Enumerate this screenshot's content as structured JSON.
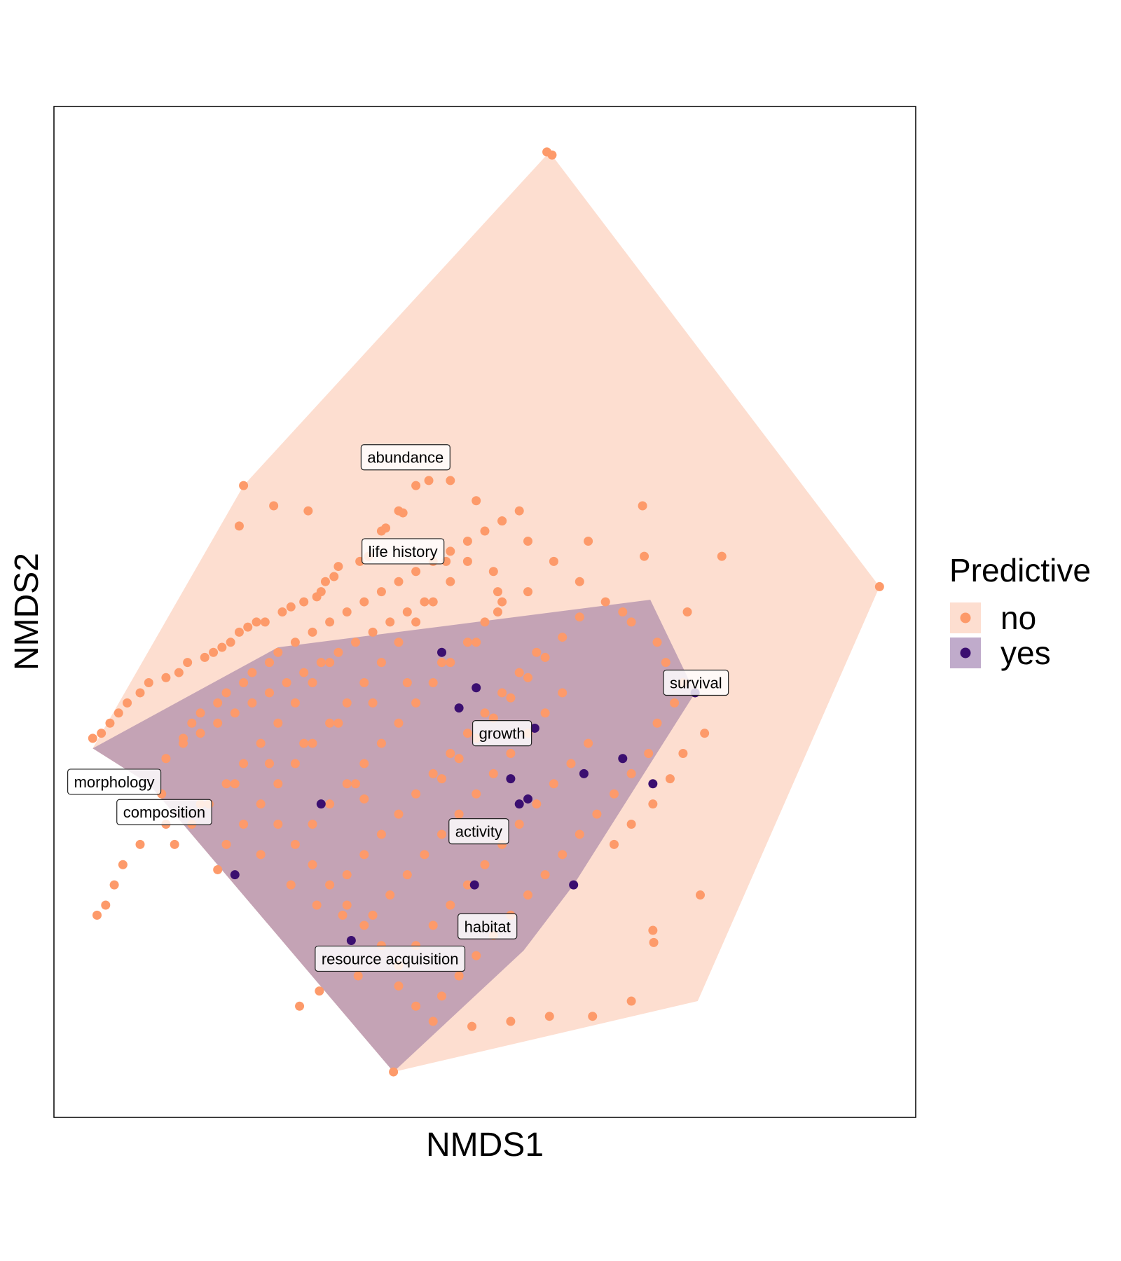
{
  "chart_data": {
    "type": "scatter",
    "title": "",
    "xlabel": "NMDS1",
    "ylabel": "NMDS2",
    "xlim": [
      0,
      100
    ],
    "ylim": [
      0,
      100
    ],
    "axis_ticks": false,
    "grid": false,
    "legend": {
      "title": "Predictive",
      "position": "right",
      "entries": [
        {
          "label": "no",
          "point_color": "#FD9A6A",
          "fill_color": "#FDDED0"
        },
        {
          "label": "yes",
          "point_color": "#3B0F70",
          "fill_color": "#C0ABCB"
        }
      ]
    },
    "hulls": [
      {
        "group": "no",
        "fill": "#FDDED0",
        "vertices": [
          [
            4.5,
            36.5
          ],
          [
            22,
            62.5
          ],
          [
            57.5,
            95.5
          ],
          [
            95.8,
            52.5
          ],
          [
            74.7,
            11.5
          ],
          [
            39.4,
            4.5
          ],
          [
            11,
            33
          ]
        ]
      },
      {
        "group": "yes",
        "fill": "#C4A3B5",
        "vertices": [
          [
            4.5,
            36.5
          ],
          [
            26,
            46.5
          ],
          [
            69.2,
            51.2
          ],
          [
            74.4,
            42
          ],
          [
            60.3,
            23
          ],
          [
            54.5,
            16.5
          ],
          [
            39.4,
            4.5
          ],
          [
            11,
            33
          ]
        ]
      }
    ],
    "series": [
      {
        "name": "no",
        "color": "#FD9A6A",
        "points": [
          [
            57.2,
            95.5
          ],
          [
            57.8,
            95.2
          ],
          [
            95.8,
            52.5
          ],
          [
            22,
            62.5
          ],
          [
            21.5,
            58.5
          ],
          [
            25.5,
            60.5
          ],
          [
            29.5,
            60
          ],
          [
            42,
            62.5
          ],
          [
            40,
            60
          ],
          [
            40.5,
            59.8
          ],
          [
            38.5,
            58.3
          ],
          [
            38,
            58
          ],
          [
            36.5,
            55.5
          ],
          [
            35.5,
            55
          ],
          [
            33,
            54.5
          ],
          [
            32.5,
            53.5
          ],
          [
            31.5,
            53
          ],
          [
            31,
            52
          ],
          [
            30.5,
            51.5
          ],
          [
            29,
            51
          ],
          [
            27.5,
            50.5
          ],
          [
            26.5,
            50
          ],
          [
            24.5,
            49
          ],
          [
            23.5,
            49
          ],
          [
            22.5,
            48.5
          ],
          [
            21.5,
            48
          ],
          [
            20.5,
            47
          ],
          [
            19.5,
            46.5
          ],
          [
            18.5,
            46
          ],
          [
            17.5,
            45.5
          ],
          [
            15.5,
            45
          ],
          [
            14.5,
            44
          ],
          [
            13,
            43.5
          ],
          [
            11,
            43
          ],
          [
            10,
            42
          ],
          [
            8.5,
            41
          ],
          [
            7.5,
            40
          ],
          [
            6.5,
            39
          ],
          [
            5.5,
            38
          ],
          [
            4.5,
            37.5
          ],
          [
            43.5,
            63
          ],
          [
            45.5,
            55
          ],
          [
            51,
            54
          ],
          [
            51.5,
            52
          ],
          [
            68.3,
            60.5
          ],
          [
            68.5,
            55.5
          ],
          [
            66,
            50
          ],
          [
            77.5,
            55.5
          ],
          [
            73.5,
            50
          ],
          [
            62,
            57
          ],
          [
            55,
            52
          ],
          [
            51.5,
            50
          ],
          [
            49,
            47
          ],
          [
            45,
            45
          ],
          [
            41,
            43
          ],
          [
            37,
            41
          ],
          [
            33,
            39
          ],
          [
            29,
            37
          ],
          [
            25,
            35
          ],
          [
            21,
            33
          ],
          [
            17,
            31
          ],
          [
            13,
            29
          ],
          [
            10,
            27
          ],
          [
            8,
            25
          ],
          [
            7,
            23
          ],
          [
            6,
            21
          ],
          [
            5,
            20
          ],
          [
            12.5,
            32
          ],
          [
            13,
            35.5
          ],
          [
            15,
            37.5
          ],
          [
            16,
            39
          ],
          [
            17,
            40
          ],
          [
            19,
            41
          ],
          [
            20,
            42
          ],
          [
            22,
            43
          ],
          [
            23,
            44
          ],
          [
            25,
            45
          ],
          [
            26,
            46
          ],
          [
            28,
            47
          ],
          [
            30,
            48
          ],
          [
            32,
            49
          ],
          [
            34,
            50
          ],
          [
            36,
            51
          ],
          [
            38,
            52
          ],
          [
            40,
            53
          ],
          [
            42,
            54
          ],
          [
            44,
            55
          ],
          [
            46,
            56
          ],
          [
            48,
            57
          ],
          [
            50,
            58
          ],
          [
            52,
            59
          ],
          [
            54,
            60
          ],
          [
            43,
            51
          ],
          [
            41,
            50
          ],
          [
            39,
            49
          ],
          [
            37,
            48
          ],
          [
            35,
            47
          ],
          [
            33,
            46
          ],
          [
            31,
            45
          ],
          [
            29,
            44
          ],
          [
            27,
            43
          ],
          [
            25,
            42
          ],
          [
            23,
            41
          ],
          [
            21,
            40
          ],
          [
            19,
            39
          ],
          [
            17,
            38
          ],
          [
            15,
            37
          ],
          [
            26,
            33
          ],
          [
            28,
            35
          ],
          [
            30,
            37
          ],
          [
            32,
            39
          ],
          [
            34,
            41
          ],
          [
            36,
            43
          ],
          [
            38,
            45
          ],
          [
            40,
            47
          ],
          [
            42,
            49
          ],
          [
            44,
            51
          ],
          [
            46,
            53
          ],
          [
            48,
            55
          ],
          [
            30,
            29
          ],
          [
            32,
            31
          ],
          [
            34,
            33
          ],
          [
            36,
            35
          ],
          [
            38,
            37
          ],
          [
            40,
            39
          ],
          [
            42,
            41
          ],
          [
            44,
            43
          ],
          [
            46,
            45
          ],
          [
            48,
            47
          ],
          [
            50,
            49
          ],
          [
            52,
            51
          ],
          [
            34,
            24
          ],
          [
            36,
            26
          ],
          [
            38,
            28
          ],
          [
            40,
            30
          ],
          [
            42,
            32
          ],
          [
            44,
            34
          ],
          [
            46,
            36
          ],
          [
            48,
            38
          ],
          [
            50,
            40
          ],
          [
            52,
            42
          ],
          [
            54,
            44
          ],
          [
            56,
            46
          ],
          [
            37,
            20
          ],
          [
            39,
            22
          ],
          [
            41,
            24
          ],
          [
            43,
            26
          ],
          [
            45,
            28
          ],
          [
            47,
            30
          ],
          [
            49,
            32
          ],
          [
            51,
            34
          ],
          [
            53,
            36
          ],
          [
            55,
            38
          ],
          [
            57,
            40
          ],
          [
            59,
            42
          ],
          [
            40,
            15
          ],
          [
            42,
            17
          ],
          [
            44,
            19
          ],
          [
            46,
            21
          ],
          [
            48,
            23
          ],
          [
            50,
            25
          ],
          [
            52,
            27
          ],
          [
            54,
            29
          ],
          [
            56,
            31
          ],
          [
            58,
            33
          ],
          [
            60,
            35
          ],
          [
            62,
            37
          ],
          [
            45,
            12
          ],
          [
            47,
            14
          ],
          [
            49,
            16
          ],
          [
            51,
            18
          ],
          [
            53,
            20
          ],
          [
            55,
            22
          ],
          [
            57,
            24
          ],
          [
            59,
            26
          ],
          [
            61,
            28
          ],
          [
            63,
            30
          ],
          [
            65,
            32
          ],
          [
            67,
            34
          ],
          [
            69,
            36
          ],
          [
            70,
            39
          ],
          [
            72,
            41
          ],
          [
            73,
            43
          ],
          [
            71,
            45
          ],
          [
            70,
            47
          ],
          [
            67,
            49
          ],
          [
            64,
            51
          ],
          [
            61,
            53
          ],
          [
            58,
            55
          ],
          [
            55,
            57
          ],
          [
            52,
            59
          ],
          [
            49,
            61
          ],
          [
            46,
            63
          ],
          [
            75.5,
            38
          ],
          [
            73,
            36
          ],
          [
            71.5,
            33.5
          ],
          [
            69.5,
            31
          ],
          [
            67,
            29
          ],
          [
            65,
            27
          ],
          [
            75,
            22
          ],
          [
            69.5,
            18.5
          ],
          [
            69.6,
            17.3
          ],
          [
            57.5,
            10
          ],
          [
            62.5,
            10
          ],
          [
            67,
            11.5
          ],
          [
            53,
            9.5
          ],
          [
            48.5,
            9
          ],
          [
            39.4,
            4.5
          ],
          [
            33.5,
            20
          ],
          [
            30.5,
            21
          ],
          [
            27.5,
            23
          ],
          [
            24,
            26
          ],
          [
            35,
            33
          ],
          [
            36,
            31.5
          ],
          [
            45,
            33.5
          ],
          [
            47,
            35.5
          ],
          [
            49,
            37.5
          ],
          [
            51,
            39.5
          ],
          [
            53,
            41.5
          ],
          [
            55,
            43.5
          ],
          [
            57,
            45.5
          ],
          [
            59,
            47.5
          ],
          [
            61,
            49.5
          ],
          [
            32,
            45
          ],
          [
            30,
            43
          ],
          [
            28,
            41
          ],
          [
            26,
            39
          ],
          [
            24,
            37
          ],
          [
            22,
            35
          ],
          [
            20,
            33
          ],
          [
            18,
            31
          ],
          [
            16,
            29
          ],
          [
            14,
            27
          ],
          [
            19,
            24.5
          ],
          [
            20,
            27
          ],
          [
            22,
            29
          ],
          [
            24,
            31
          ],
          [
            26,
            29
          ],
          [
            28,
            27
          ],
          [
            30,
            25
          ],
          [
            32,
            23
          ],
          [
            34,
            21
          ],
          [
            36,
            19
          ],
          [
            38,
            17
          ],
          [
            40,
            13
          ],
          [
            42,
            11
          ],
          [
            44,
            9.5
          ],
          [
            35.3,
            14
          ],
          [
            30.8,
            12.5
          ],
          [
            28.5,
            11
          ]
        ]
      },
      {
        "name": "yes",
        "color": "#3B0F70",
        "points": [
          [
            45,
            46
          ],
          [
            49,
            42.5
          ],
          [
            55.8,
            38.5
          ],
          [
            61.5,
            34
          ],
          [
            66,
            35.5
          ],
          [
            69.5,
            33
          ],
          [
            74.4,
            42
          ],
          [
            47,
            40.5
          ],
          [
            53,
            33.5
          ],
          [
            54,
            31
          ],
          [
            55,
            31.5
          ],
          [
            31,
            31
          ],
          [
            21,
            24
          ],
          [
            60.3,
            23
          ],
          [
            48.8,
            23
          ],
          [
            34.5,
            17.5
          ]
        ]
      }
    ],
    "annotations": [
      {
        "text": "abundance",
        "x": 40.8,
        "y": 65.3
      },
      {
        "text": "life history",
        "x": 40.5,
        "y": 56
      },
      {
        "text": "survival",
        "x": 74.5,
        "y": 43
      },
      {
        "text": "growth",
        "x": 52,
        "y": 38
      },
      {
        "text": "morphology",
        "x": 7,
        "y": 33.2
      },
      {
        "text": "composition",
        "x": 12.8,
        "y": 30.2
      },
      {
        "text": "activity",
        "x": 49.3,
        "y": 28.3
      },
      {
        "text": "habitat",
        "x": 50.3,
        "y": 18.9
      },
      {
        "text": "resource acquisition",
        "x": 39,
        "y": 15.7
      }
    ]
  }
}
